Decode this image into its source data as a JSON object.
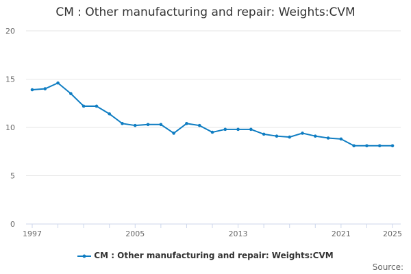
{
  "chart_data": {
    "type": "line",
    "title": "CM : Other manufacturing and repair: Weights:CVM",
    "xlabel": "",
    "ylabel": "",
    "x": [
      1997,
      1998,
      1999,
      2000,
      2001,
      2002,
      2003,
      2004,
      2005,
      2006,
      2007,
      2008,
      2009,
      2010,
      2011,
      2012,
      2013,
      2014,
      2015,
      2016,
      2017,
      2018,
      2019,
      2020,
      2021,
      2022,
      2023,
      2024,
      2025
    ],
    "series": [
      {
        "name": "CM : Other manufacturing and repair: Weights:CVM",
        "color": "#0f7dc2",
        "values": [
          13.9,
          14.0,
          14.6,
          13.5,
          12.2,
          12.2,
          11.4,
          10.4,
          10.2,
          10.3,
          10.3,
          9.4,
          10.4,
          10.2,
          9.5,
          9.8,
          9.8,
          9.8,
          9.3,
          9.1,
          9.0,
          9.4,
          9.1,
          8.9,
          8.8,
          8.1,
          8.1,
          8.1,
          8.1
        ]
      }
    ],
    "ylim": [
      0,
      20
    ],
    "yticks": [
      "0",
      "5",
      "10",
      "15",
      "20"
    ],
    "xticks": [
      "1997",
      "2005",
      "2013",
      "2021",
      "2025"
    ],
    "grid": true,
    "legend_position": "bottom"
  },
  "source_label": "Source:"
}
